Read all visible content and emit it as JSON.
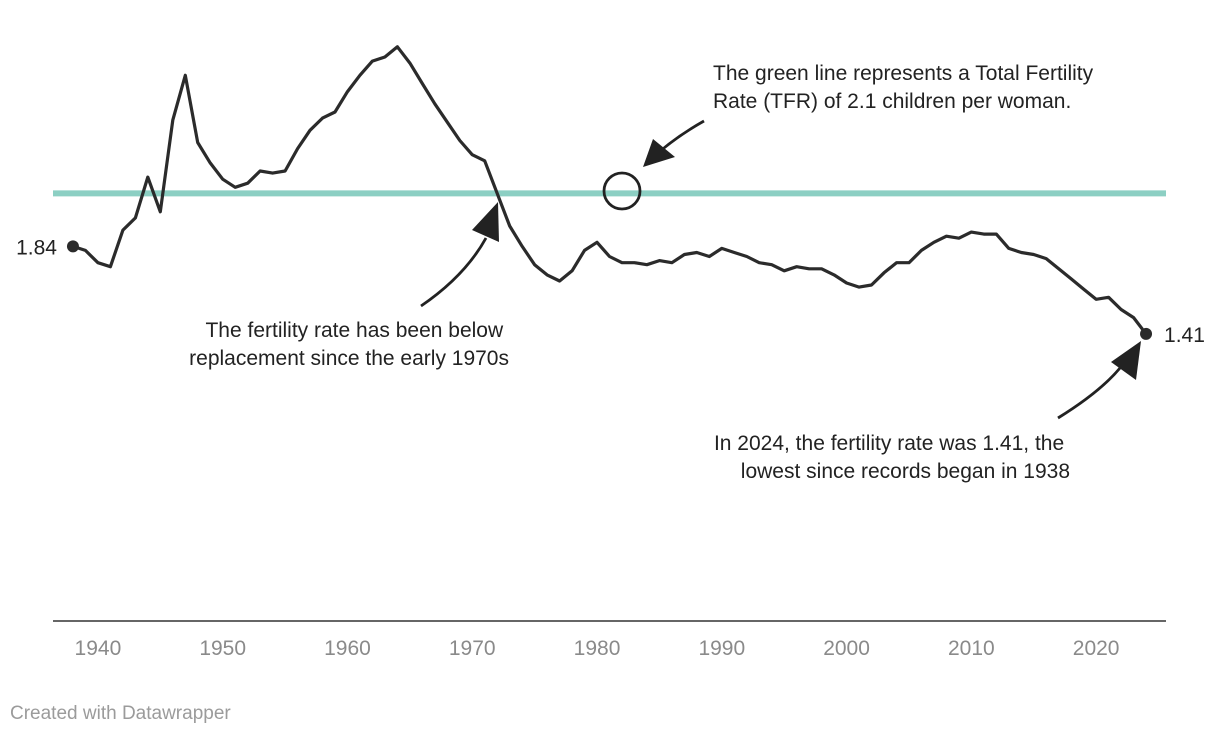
{
  "chart_data": {
    "type": "line",
    "title": "",
    "xlabel": "",
    "ylabel": "",
    "xlim": [
      1936.4,
      2025.6
    ],
    "ylim": [
      0.0,
      3.05
    ],
    "grid": false,
    "x_ticks": [
      1940,
      1950,
      1960,
      1970,
      1980,
      1990,
      2000,
      2010,
      2020
    ],
    "reference_line": {
      "value": 2.1,
      "color": "#8ccfc3"
    },
    "series": [
      {
        "color": "#2b2b2b",
        "x": [
          1938,
          1939,
          1940,
          1941,
          1942,
          1943,
          1944,
          1945,
          1946,
          1947,
          1948,
          1949,
          1950,
          1951,
          1952,
          1953,
          1954,
          1955,
          1956,
          1957,
          1958,
          1959,
          1960,
          1961,
          1962,
          1963,
          1964,
          1965,
          1966,
          1967,
          1968,
          1969,
          1970,
          1971,
          1972,
          1973,
          1974,
          1975,
          1976,
          1977,
          1978,
          1979,
          1980,
          1981,
          1982,
          1983,
          1984,
          1985,
          1986,
          1987,
          1988,
          1989,
          1990,
          1991,
          1992,
          1993,
          1994,
          1995,
          1996,
          1997,
          1998,
          1999,
          2000,
          2001,
          2002,
          2003,
          2004,
          2005,
          2006,
          2007,
          2008,
          2009,
          2010,
          2011,
          2012,
          2013,
          2014,
          2015,
          2016,
          2017,
          2018,
          2019,
          2020,
          2021,
          2022,
          2023,
          2024
        ],
        "y": [
          1.84,
          1.82,
          1.76,
          1.74,
          1.92,
          1.98,
          2.18,
          2.01,
          2.46,
          2.68,
          2.35,
          2.25,
          2.17,
          2.13,
          2.15,
          2.21,
          2.2,
          2.21,
          2.32,
          2.41,
          2.47,
          2.5,
          2.6,
          2.68,
          2.75,
          2.77,
          2.82,
          2.74,
          2.64,
          2.54,
          2.45,
          2.36,
          2.29,
          2.26,
          2.1,
          1.94,
          1.84,
          1.75,
          1.7,
          1.67,
          1.72,
          1.82,
          1.86,
          1.79,
          1.76,
          1.76,
          1.75,
          1.77,
          1.76,
          1.8,
          1.81,
          1.79,
          1.83,
          1.81,
          1.79,
          1.76,
          1.75,
          1.72,
          1.74,
          1.73,
          1.73,
          1.7,
          1.66,
          1.64,
          1.65,
          1.71,
          1.76,
          1.76,
          1.82,
          1.86,
          1.89,
          1.88,
          1.91,
          1.9,
          1.9,
          1.83,
          1.81,
          1.8,
          1.78,
          1.73,
          1.68,
          1.63,
          1.58,
          1.59,
          1.53,
          1.49,
          1.41
        ]
      }
    ],
    "end_labels": {
      "start": {
        "x": 1938,
        "y": 1.84,
        "text": "1.84"
      },
      "end": {
        "x": 2024,
        "y": 1.41,
        "text": "1.41"
      }
    },
    "annotations": [
      {
        "lines": [
          "The green line represents a Total Fertility",
          "Rate (TFR) of 2.1 children per woman."
        ]
      },
      {
        "lines": [
          "The fertility rate has been below",
          "replacement since the early 1970s"
        ]
      },
      {
        "lines": [
          "In 2024, the fertility rate was 1.41, the",
          "lowest since records began in 1938"
        ]
      }
    ]
  },
  "footer": {
    "credit": "Created with Datawrapper"
  }
}
